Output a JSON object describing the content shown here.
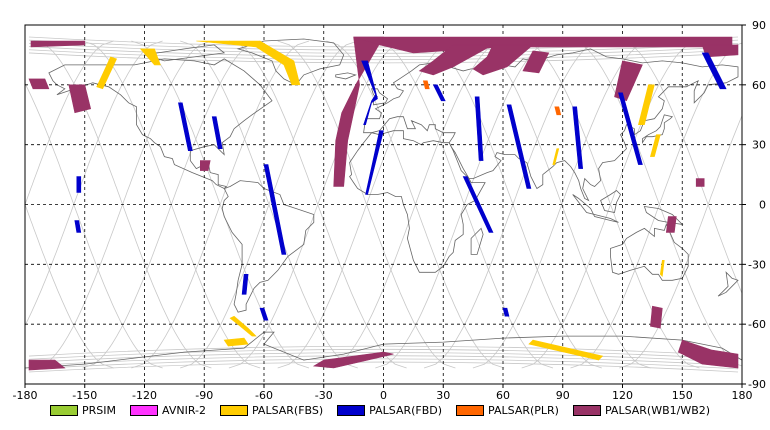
{
  "chart_data": {
    "type": "map",
    "xlim": [
      -180,
      180
    ],
    "ylim": [
      -90,
      90
    ],
    "x_ticks": [
      "-180",
      "-150",
      "-120",
      "-90",
      "-60",
      "-30",
      "0",
      "30",
      "60",
      "90",
      "120",
      "150",
      "180"
    ],
    "y_ticks": [
      "90",
      "60",
      "30",
      "0",
      "-30",
      "-60",
      "-90"
    ],
    "grid": true,
    "legend": [
      {
        "label": "PRSIM",
        "color": "#99cc33"
      },
      {
        "label": "AVNIR-2",
        "color": "#ff33ff"
      },
      {
        "label": "PALSAR(FBS)",
        "color": "#ffcc00"
      },
      {
        "label": "PALSAR(FBD)",
        "color": "#0000cc"
      },
      {
        "label": "PALSAR(PLR)",
        "color": "#ff6600"
      },
      {
        "label": "PALSAR(WB1/WB2)",
        "color": "#993366"
      }
    ],
    "swaths": {
      "wb": [
        [
          [
            -177,
            82
          ],
          [
            -150,
            82
          ],
          [
            -150,
            80
          ],
          [
            -177,
            79
          ]
        ],
        [
          [
            -178,
            63
          ],
          [
            -170,
            63
          ],
          [
            -168,
            58
          ],
          [
            -176,
            58
          ]
        ],
        [
          [
            -158,
            60
          ],
          [
            -150,
            60
          ],
          [
            -147,
            48
          ],
          [
            -155,
            46
          ]
        ],
        [
          [
            -92,
            22
          ],
          [
            -87,
            22
          ],
          [
            -88,
            17
          ],
          [
            -92,
            17
          ]
        ],
        [
          [
            -15,
            84
          ],
          [
            0,
            84
          ],
          [
            -14,
            60
          ],
          [
            -21,
            46
          ],
          [
            -24,
            32
          ],
          [
            -25,
            9
          ],
          [
            -20,
            9
          ],
          [
            -18,
            32
          ],
          [
            -12,
            60
          ]
        ],
        [
          [
            -15,
            84
          ],
          [
            175,
            84
          ],
          [
            175,
            79
          ],
          [
            60,
            79
          ],
          [
            15,
            76
          ],
          [
            -2,
            80
          ]
        ],
        [
          [
            35,
            80
          ],
          [
            55,
            80
          ],
          [
            35,
            69
          ],
          [
            25,
            65
          ],
          [
            18,
            67
          ],
          [
            25,
            72
          ]
        ],
        [
          [
            55,
            80
          ],
          [
            75,
            80
          ],
          [
            62,
            69
          ],
          [
            50,
            65
          ],
          [
            45,
            68
          ],
          [
            52,
            74
          ]
        ],
        [
          [
            75,
            77
          ],
          [
            83,
            76
          ],
          [
            78,
            66
          ],
          [
            70,
            67
          ]
        ],
        [
          [
            120,
            72
          ],
          [
            130,
            70
          ],
          [
            122,
            52
          ],
          [
            116,
            54
          ]
        ],
        [
          [
            160,
            80
          ],
          [
            178,
            80
          ],
          [
            178,
            75
          ],
          [
            162,
            74
          ]
        ],
        [
          [
            -178,
            -78
          ],
          [
            -165,
            -78
          ],
          [
            -160,
            -82
          ],
          [
            -178,
            -83
          ]
        ],
        [
          [
            -30,
            -78
          ],
          [
            0,
            -74
          ],
          [
            5,
            -75
          ],
          [
            -25,
            -82
          ],
          [
            -35,
            -81
          ]
        ],
        [
          [
            150,
            -68
          ],
          [
            165,
            -73
          ],
          [
            178,
            -75
          ],
          [
            178,
            -82
          ],
          [
            160,
            -80
          ],
          [
            148,
            -74
          ]
        ],
        [
          [
            135,
            -51
          ],
          [
            140,
            -52
          ],
          [
            139,
            -62
          ],
          [
            134,
            -61
          ]
        ],
        [
          [
            150,
            -68
          ],
          [
            155,
            -70
          ],
          [
            155,
            -72
          ],
          [
            150,
            -71
          ]
        ],
        [
          [
            143,
            -6
          ],
          [
            147,
            -6
          ],
          [
            146,
            -14
          ],
          [
            142,
            -14
          ]
        ],
        [
          [
            157,
            13
          ],
          [
            161,
            13
          ],
          [
            161,
            9
          ],
          [
            157,
            9
          ]
        ]
      ],
      "fbs": [
        [
          [
            -137,
            74
          ],
          [
            -134,
            73
          ],
          [
            -141,
            58
          ],
          [
            -144,
            59
          ]
        ],
        [
          [
            -94,
            82
          ],
          [
            -62,
            82
          ],
          [
            -45,
            72
          ],
          [
            -42,
            60
          ],
          [
            -46,
            60
          ],
          [
            -50,
            70
          ],
          [
            -64,
            79
          ]
        ],
        [
          [
            -122,
            78
          ],
          [
            -115,
            78
          ],
          [
            -112,
            70
          ],
          [
            -115,
            70
          ]
        ],
        [
          [
            -75,
            -56
          ],
          [
            -68,
            -62
          ],
          [
            -64,
            -66
          ],
          [
            -66,
            -66
          ],
          [
            -72,
            -61
          ],
          [
            -77,
            -57
          ]
        ],
        [
          [
            -80,
            -68
          ],
          [
            -70,
            -67
          ],
          [
            -68,
            -70
          ],
          [
            -78,
            -71
          ]
        ],
        [
          [
            75,
            -68
          ],
          [
            110,
            -76
          ],
          [
            108,
            -78
          ],
          [
            73,
            -70
          ]
        ],
        [
          [
            140,
            -28
          ],
          [
            141,
            -28
          ],
          [
            140,
            -36
          ],
          [
            139,
            -35
          ]
        ],
        [
          [
            133,
            60
          ],
          [
            136,
            60
          ],
          [
            131,
            40
          ],
          [
            128,
            40
          ]
        ],
        [
          [
            137,
            35
          ],
          [
            139,
            35
          ],
          [
            136,
            24
          ],
          [
            134,
            24
          ]
        ],
        [
          [
            87,
            28
          ],
          [
            88,
            28
          ],
          [
            86,
            20
          ],
          [
            85,
            20
          ]
        ]
      ],
      "fbd": [
        [
          [
            -11,
            72
          ],
          [
            -8,
            72
          ],
          [
            -3,
            53
          ],
          [
            -6,
            51
          ],
          [
            -9,
            40
          ],
          [
            -10,
            40
          ],
          [
            -6,
            52
          ],
          [
            -4,
            55
          ]
        ],
        [
          [
            -2,
            37
          ],
          [
            0,
            37
          ],
          [
            -8,
            5
          ],
          [
            -9,
            5
          ]
        ],
        [
          [
            25,
            60
          ],
          [
            27,
            60
          ],
          [
            31,
            52
          ],
          [
            29,
            52
          ]
        ],
        [
          [
            40,
            14
          ],
          [
            42,
            14
          ],
          [
            55,
            -14
          ],
          [
            53,
            -14
          ]
        ],
        [
          [
            46,
            54
          ],
          [
            48,
            54
          ],
          [
            50,
            22
          ],
          [
            48,
            22
          ]
        ],
        [
          [
            -60,
            20
          ],
          [
            -58,
            20
          ],
          [
            -49,
            -25
          ],
          [
            -51,
            -25
          ]
        ],
        [
          [
            -103,
            51
          ],
          [
            -101,
            51
          ],
          [
            -96,
            27
          ],
          [
            -98,
            27
          ]
        ],
        [
          [
            -86,
            44
          ],
          [
            -84,
            44
          ],
          [
            -81,
            28
          ],
          [
            -83,
            28
          ]
        ],
        [
          [
            62,
            50
          ],
          [
            64,
            50
          ],
          [
            74,
            8
          ],
          [
            72,
            8
          ]
        ],
        [
          [
            95,
            49
          ],
          [
            97,
            49
          ],
          [
            100,
            18
          ],
          [
            98,
            18
          ]
        ],
        [
          [
            118,
            56
          ],
          [
            120,
            56
          ],
          [
            130,
            20
          ],
          [
            128,
            20
          ]
        ],
        [
          [
            160,
            76
          ],
          [
            163,
            76
          ],
          [
            172,
            58
          ],
          [
            169,
            58
          ]
        ],
        [
          [
            -70,
            -35
          ],
          [
            -68,
            -35
          ],
          [
            -69,
            -45
          ],
          [
            -71,
            -45
          ]
        ],
        [
          [
            -62,
            -52
          ],
          [
            -60,
            -52
          ],
          [
            -58,
            -58
          ],
          [
            -60,
            -58
          ]
        ],
        [
          [
            60,
            -52
          ],
          [
            62,
            -52
          ],
          [
            63,
            -56
          ],
          [
            61,
            -56
          ]
        ],
        [
          [
            -154,
            14
          ],
          [
            -152,
            14
          ],
          [
            -152,
            6
          ],
          [
            -154,
            6
          ]
        ],
        [
          [
            -155,
            -8
          ],
          [
            -153,
            -8
          ],
          [
            -152,
            -14
          ],
          [
            -154,
            -14
          ]
        ]
      ],
      "plr": [
        [
          [
            20,
            62
          ],
          [
            22,
            62
          ],
          [
            23,
            58
          ],
          [
            21,
            58
          ]
        ],
        [
          [
            86,
            49
          ],
          [
            88,
            49
          ],
          [
            89,
            45
          ],
          [
            87,
            45
          ]
        ]
      ]
    }
  }
}
